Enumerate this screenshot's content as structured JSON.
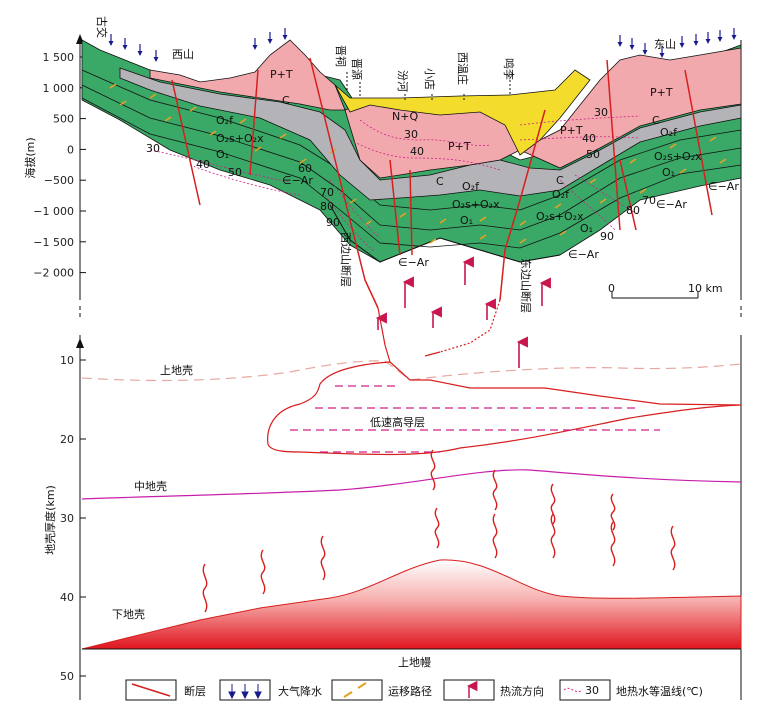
{
  "upper_axis": {
    "title": "海拔(m)",
    "ticks": [
      "1 500",
      "1 000",
      "500",
      "0",
      "−500",
      "−1 000",
      "−1 500",
      "−2 000"
    ]
  },
  "lower_axis": {
    "title": "地壳厚度(km)",
    "ticks": [
      "10",
      "20",
      "30",
      "40",
      "50"
    ]
  },
  "places": {
    "gujiao": "古交",
    "xishan": "西山",
    "jinci": "晋祠",
    "jinyuan": "晋源",
    "fenhe": "汾河",
    "xiaodian": "小店",
    "xiwenzhuang": "西温庄",
    "mingli": "鸣李",
    "dongshan": "东山"
  },
  "strata": {
    "pt_left": "P+T",
    "pt_center": "P+T",
    "pt_right1": "P+T",
    "pt_right2": "P+T",
    "nq": "N+Q",
    "c_left": "C",
    "c_center": "C",
    "c_right1": "C",
    "c_right2": "C",
    "o2f_left": "O₂f",
    "o2f_center": "O₂f",
    "o2f_right1": "O₂f",
    "o2f_right2": "O₂f",
    "o2s_left": "O₂s+O₂x",
    "o2s_center": "O₂s+O₂x",
    "o2s_right1": "O₂s+O₂x",
    "o2s_right2": "O₂s+O₂x",
    "o1_left": "O₁",
    "o1_center": "O₁",
    "o1_right1": "O₁",
    "o1_right2": "O₁",
    "ear_left": "∈−Ar",
    "ear_center": "∈−Ar",
    "ear_right1": "∈−Ar",
    "ear_right2": "∈−Ar",
    "ear_right3": "∈−Ar"
  },
  "isotherms": {
    "l30": "30",
    "l40": "40",
    "l50": "50",
    "l60": "60",
    "l70": "70",
    "l80": "80",
    "l90": "90",
    "c30": "30",
    "c40": "40",
    "r30": "30",
    "r40": "40",
    "r50": "50",
    "r70": "70",
    "r80": "80",
    "r90": "90"
  },
  "faults": {
    "west": "西边山断层",
    "east": "东边山断层"
  },
  "scale_bar": {
    "zero": "0",
    "end": "10 km"
  },
  "crust": {
    "upper": "上地壳",
    "lvz": "低速高导层",
    "middle": "中地壳",
    "lower": "下地壳",
    "mantle": "上地幔"
  },
  "legend": {
    "fault": "断层",
    "precip": "大气降水",
    "migration": "运移路径",
    "heatflow": "热流方向",
    "iso_sample": "30",
    "isotherm": "地热水等温线(℃)"
  },
  "colors": {
    "limestone_green": "#3aa866",
    "permian_pink": "#f2a9ad",
    "carbon_gray": "#b4b4b8",
    "neogene_yellow": "#f4dc2c",
    "fault_red": "#d81e1e",
    "isotherm_magenta": "#d0208a",
    "arrow_crimson": "#c8174f",
    "precip_navy": "#1a1a8c",
    "migration_orange": "#e8a020",
    "middle_crust_line": "#c81eaa"
  }
}
